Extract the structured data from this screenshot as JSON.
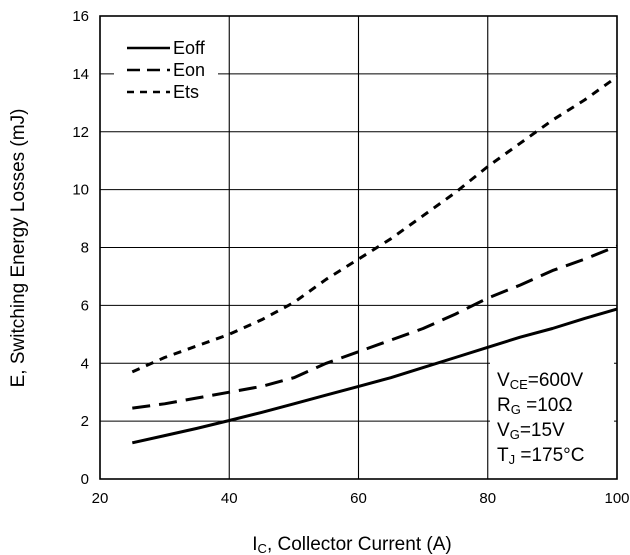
{
  "chart_data": {
    "type": "line",
    "xlabel": {
      "main": "I",
      "sub": "C",
      "rest": ", Collector Current (A)"
    },
    "ylabel": "E, Switching Energy Losses (mJ)",
    "xlim": [
      20,
      100
    ],
    "ylim": [
      0,
      16
    ],
    "x_ticks": [
      20,
      40,
      60,
      80,
      100
    ],
    "y_ticks": [
      0,
      2,
      4,
      6,
      8,
      10,
      12,
      14,
      16
    ],
    "grid": true,
    "legend_position": "top-left",
    "series": [
      {
        "name": "Eoff",
        "style": "solid",
        "x": [
          25,
          30,
          35,
          40,
          45,
          50,
          55,
          60,
          65,
          70,
          75,
          80,
          85,
          90,
          95,
          100
        ],
        "y": [
          1.25,
          1.5,
          1.75,
          2.02,
          2.3,
          2.6,
          2.9,
          3.2,
          3.5,
          3.85,
          4.2,
          4.55,
          4.9,
          5.2,
          5.55,
          5.87
        ]
      },
      {
        "name": "Eon",
        "style": "dashed",
        "x": [
          25,
          30,
          35,
          40,
          45,
          50,
          55,
          60,
          65,
          70,
          75,
          80,
          85,
          90,
          95,
          100
        ],
        "y": [
          2.45,
          2.6,
          2.8,
          3.0,
          3.2,
          3.5,
          4.0,
          4.4,
          4.8,
          5.2,
          5.7,
          6.25,
          6.7,
          7.2,
          7.6,
          8.05
        ]
      },
      {
        "name": "Ets",
        "style": "short-dashed",
        "x": [
          25,
          30,
          35,
          40,
          45,
          50,
          55,
          60,
          65,
          70,
          75,
          80,
          85,
          90,
          95,
          100
        ],
        "y": [
          3.7,
          4.2,
          4.6,
          5.0,
          5.5,
          6.1,
          6.9,
          7.6,
          8.3,
          9.1,
          9.9,
          10.8,
          11.6,
          12.4,
          13.1,
          13.9
        ]
      }
    ],
    "conditions": [
      {
        "main": "V",
        "sub": "CE",
        "rest": "=600V"
      },
      {
        "main": "R",
        "sub": "G",
        "rest": " =10Ω"
      },
      {
        "main": "V",
        "sub": "G",
        "rest": "=15V"
      },
      {
        "main": "T",
        "sub": "J",
        "rest": " =175°C"
      }
    ]
  }
}
